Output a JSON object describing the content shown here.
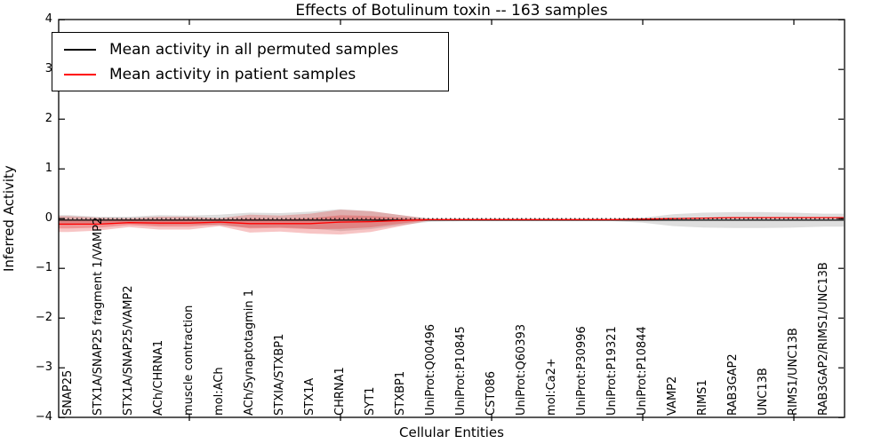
{
  "title": "Effects of Botulinum toxin -- 163 samples",
  "legend": {
    "entries": [
      {
        "label": "Mean activity in all permuted samples",
        "color": "#000000"
      },
      {
        "label": "Mean activity in patient samples",
        "color": "#ff0000"
      }
    ]
  },
  "axes": {
    "ylabel": "Inferred Activity",
    "xlabel": "Cellular Entities",
    "yticks": [
      4,
      3,
      2,
      1,
      0,
      -1,
      -2,
      -3,
      -4
    ],
    "ylim": [
      -4,
      4
    ]
  },
  "colors": {
    "permuted_line": "#000000",
    "patient_line": "#ff0000",
    "permuted_band": "rgba(125,125,125,0.25)",
    "patient_band": "rgba(225,40,40,0.27)"
  },
  "chart_data": {
    "type": "area",
    "title": "Effects of Botulinum toxin -- 163 samples",
    "xlabel": "Cellular Entities",
    "ylabel": "Inferred Activity",
    "ylim": [
      -4,
      4
    ],
    "grid": false,
    "legend_position": "upper left",
    "zero_line": {
      "style": "dotted",
      "y": 0
    },
    "categories": [
      "SNAP25",
      "STX1A/SNAP25 fragment 1/VAMP2",
      "STX1A/SNAP25/VAMP2",
      "ACh/CHRNA1",
      "muscle contraction",
      "mol:ACh",
      "ACh/Synaptotagmin 1",
      "STXIA/STXBP1",
      "STX1A",
      "CHRNA1",
      "SYT1",
      "STXBP1",
      "UniProt:Q00496",
      "UniProt:P10845",
      "CST086",
      "UniProt:Q60393",
      "mol:Ca2+",
      "UniProt:P30996",
      "UniProt:P19321",
      "UniProt:P10844",
      "VAMP2",
      "RIMS1",
      "RAB3GAP2",
      "UNC13B",
      "RIMS1/UNC13B",
      "RAB3GAP2/RIMS1/UNC13B"
    ],
    "series": [
      {
        "name": "Mean activity in all permuted samples",
        "color": "#000000",
        "mean": [
          -0.03,
          -0.03,
          -0.03,
          -0.03,
          -0.03,
          -0.03,
          -0.03,
          -0.03,
          -0.03,
          -0.03,
          -0.03,
          -0.03,
          -0.03,
          -0.03,
          -0.03,
          -0.03,
          -0.03,
          -0.03,
          -0.03,
          -0.03,
          -0.03,
          -0.03,
          -0.03,
          -0.03,
          -0.03,
          -0.03
        ],
        "std": [
          0.1,
          0.07,
          0.07,
          0.1,
          0.09,
          0.11,
          0.15,
          0.14,
          0.17,
          0.22,
          0.18,
          0.1,
          0.03,
          0.02,
          0.02,
          0.02,
          0.02,
          0.02,
          0.02,
          0.05,
          0.12,
          0.15,
          0.16,
          0.16,
          0.15,
          0.13
        ]
      },
      {
        "name": "Mean activity in patient samples",
        "color": "#ff0000",
        "mean": [
          -0.11,
          -0.11,
          -0.08,
          -0.09,
          -0.09,
          -0.07,
          -0.1,
          -0.1,
          -0.1,
          -0.07,
          -0.06,
          -0.04,
          -0.02,
          -0.02,
          -0.02,
          -0.02,
          -0.02,
          -0.02,
          -0.02,
          -0.01,
          0.0,
          0.01,
          0.02,
          0.02,
          0.02,
          0.02
        ],
        "std": [
          0.16,
          0.13,
          0.09,
          0.13,
          0.13,
          0.08,
          0.18,
          0.16,
          0.2,
          0.25,
          0.21,
          0.11,
          0.01,
          0.005,
          0.005,
          0.005,
          0.005,
          0.005,
          0.005,
          0.01,
          0.01,
          0.01,
          0.01,
          0.01,
          0.01,
          0.01
        ]
      }
    ]
  }
}
